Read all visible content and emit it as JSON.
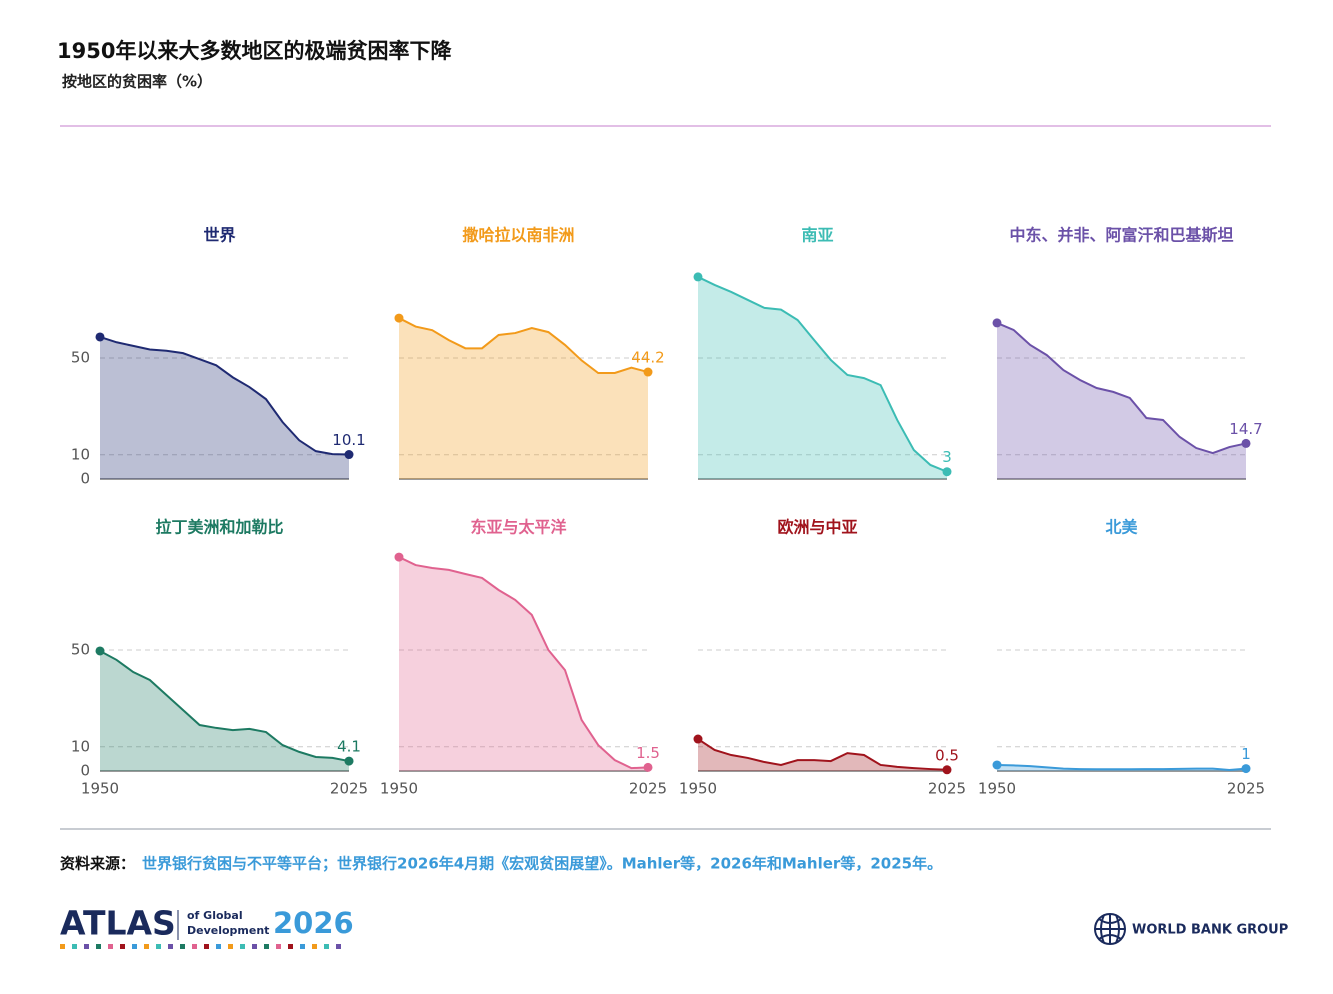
{
  "header": {
    "title": "1950年以来大多数地区的极端贫困率下降",
    "subtitle": "按地区的贫困率（%）"
  },
  "chart_data": [
    {
      "type": "area",
      "title": "世界",
      "color": "#1f2a72",
      "x": [
        1950,
        1955,
        1960,
        1965,
        1970,
        1975,
        1980,
        1985,
        1990,
        1995,
        2000,
        2005,
        2010,
        2015,
        2020,
        2025
      ],
      "values": [
        58.7,
        56.5,
        55,
        53.5,
        53,
        52,
        49.5,
        47,
        42,
        38,
        33,
        23.5,
        16,
        11.5,
        10.3,
        10.1
      ],
      "xlim": [
        1950,
        2025
      ],
      "ylim": [
        0,
        90
      ],
      "yticks": [
        0,
        10,
        50
      ]
    },
    {
      "type": "area",
      "title": "撒哈拉以南非洲",
      "color": "#f29a1a",
      "x": [
        1950,
        1955,
        1960,
        1965,
        1970,
        1975,
        1980,
        1985,
        1990,
        1995,
        2000,
        2005,
        2010,
        2015,
        2020,
        2025
      ],
      "values": [
        66.5,
        63,
        61.5,
        57.4,
        54,
        54,
        59.5,
        60.3,
        62.4,
        60.7,
        55.4,
        49,
        43.8,
        43.8,
        46,
        44.2
      ],
      "xlim": [
        1950,
        2025
      ],
      "ylim": [
        0,
        90
      ],
      "yticks": [
        0,
        10,
        50
      ]
    },
    {
      "type": "area",
      "title": "南亚",
      "color": "#3cbcb4",
      "x": [
        1950,
        1955,
        1960,
        1965,
        1970,
        1975,
        1980,
        1985,
        1990,
        1995,
        2000,
        2005,
        2010,
        2015,
        2020,
        2025
      ],
      "values": [
        83.5,
        80.2,
        77.3,
        74,
        70.7,
        70,
        65.7,
        57.4,
        49.2,
        43,
        41.7,
        38.8,
        24.4,
        12,
        5.8,
        3
      ],
      "xlim": [
        1950,
        2025
      ],
      "ylim": [
        0,
        90
      ],
      "yticks": [
        0,
        10,
        50
      ]
    },
    {
      "type": "area",
      "title": "中东、并非、阿富汗和巴基斯坦",
      "color": "#6b51a8",
      "x": [
        1950,
        1955,
        1960,
        1965,
        1970,
        1975,
        1980,
        1985,
        1990,
        1995,
        2000,
        2005,
        2010,
        2015,
        2020,
        2025
      ],
      "values": [
        64.5,
        61.6,
        55.4,
        51.2,
        45,
        40.9,
        37.6,
        36,
        33.5,
        25.2,
        24.4,
        17.4,
        12.8,
        10.7,
        13.2,
        14.7
      ],
      "xlim": [
        1950,
        2025
      ],
      "ylim": [
        0,
        90
      ],
      "yticks": [
        0,
        10,
        50
      ]
    },
    {
      "type": "area",
      "title": "拉丁美洲和加勒比",
      "color": "#1d7a62",
      "x": [
        1950,
        1955,
        1960,
        1965,
        1970,
        1975,
        1980,
        1985,
        1990,
        1995,
        2000,
        2005,
        2010,
        2015,
        2020,
        2025
      ],
      "values": [
        49.6,
        45.9,
        40.9,
        37.6,
        31.4,
        25.2,
        19,
        17.8,
        16.9,
        17.4,
        16.1,
        10.7,
        7.9,
        5.8,
        5.4,
        4.1
      ],
      "xlim": [
        1950,
        2025
      ],
      "ylim": [
        0,
        90
      ],
      "yticks": [
        0,
        10,
        50
      ],
      "xticks": [
        1950,
        2025
      ]
    },
    {
      "type": "area",
      "title": "东亚与太平洋",
      "color": "#e0628f",
      "x": [
        1950,
        1955,
        1960,
        1965,
        1970,
        1975,
        1980,
        1985,
        1990,
        1995,
        2000,
        2005,
        2010,
        2015,
        2020,
        2025
      ],
      "values": [
        88.4,
        85.1,
        83.9,
        83.1,
        81.4,
        79.8,
        74.8,
        70.7,
        64.5,
        50,
        41.7,
        21.1,
        10.7,
        4.5,
        1.2,
        1.5
      ],
      "xlim": [
        1950,
        2025
      ],
      "ylim": [
        0,
        90
      ],
      "yticks": [
        0,
        10,
        50
      ],
      "xticks": [
        1950,
        2025
      ]
    },
    {
      "type": "area",
      "title": "欧洲与中亚",
      "color": "#a0131c",
      "x": [
        1950,
        1955,
        1960,
        1965,
        1970,
        1975,
        1980,
        1985,
        1990,
        1995,
        2000,
        2005,
        2010,
        2015,
        2020,
        2025
      ],
      "values": [
        13.2,
        8.7,
        6.6,
        5.4,
        3.7,
        2.5,
        4.5,
        4.5,
        4.1,
        7.4,
        6.6,
        2.5,
        1.7,
        1.2,
        0.8,
        0.5
      ],
      "xlim": [
        1950,
        2025
      ],
      "ylim": [
        0,
        90
      ],
      "yticks": [
        0,
        10,
        50
      ],
      "xticks": [
        1950,
        2025
      ]
    },
    {
      "type": "area",
      "title": "北美",
      "color": "#3a9ad9",
      "x": [
        1950,
        1955,
        1960,
        1965,
        1970,
        1975,
        1980,
        1985,
        1990,
        1995,
        2000,
        2005,
        2010,
        2015,
        2020,
        2025
      ],
      "values": [
        2.5,
        2.3,
        2,
        1.5,
        1,
        0.8,
        0.7,
        0.7,
        0.7,
        0.8,
        0.8,
        0.9,
        1,
        1,
        0.4,
        1
      ],
      "xlim": [
        1950,
        2025
      ],
      "ylim": [
        0,
        90
      ],
      "yticks": [
        0,
        10,
        50
      ],
      "xticks": [
        1950,
        2025
      ]
    }
  ],
  "source": {
    "label": "资料来源：",
    "text": "世界银行贫困与不平等平台；世界银行2026年4月期《宏观贫困展望》。Mahler等，2026年和Mahler等，2025年。"
  },
  "footer": {
    "atlas": "ATLAS",
    "of_global": "of Global",
    "development": "Development",
    "year": "2026",
    "org": "WORLD BANK GROUP"
  }
}
